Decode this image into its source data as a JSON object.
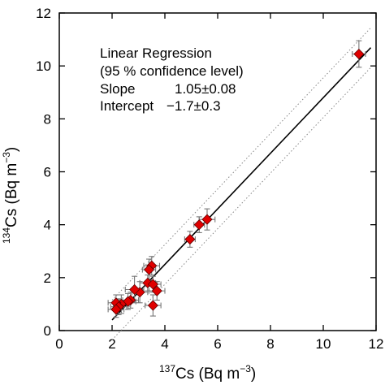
{
  "chart_data": {
    "type": "scatter",
    "title": "",
    "xlabel": {
      "sup": "137",
      "main": "Cs (Bq m",
      "unit_sup": "−3",
      "close": ")"
    },
    "ylabel": {
      "sup": "134",
      "main": "Cs (Bq m",
      "unit_sup": "−3",
      "close": ")"
    },
    "xlim": [
      0,
      12
    ],
    "ylim": [
      0,
      12
    ],
    "xticks": [
      0,
      2,
      4,
      6,
      8,
      10,
      12
    ],
    "yticks": [
      0,
      2,
      4,
      6,
      8,
      10,
      12
    ],
    "grid": false,
    "colors": {
      "marker": "#e00000",
      "marker_edge": "#600000",
      "errorbar": "#777777",
      "fit": "#000000",
      "confidence": "#888888"
    },
    "annotation": {
      "line1": "Linear Regression",
      "line2": "(95 % confidence level)",
      "slope_label": "Slope",
      "slope_value": "1.05±0.08",
      "intercept_label": "Intercept",
      "intercept_value": "−1.7±0.3"
    },
    "fit": {
      "slope": 1.05,
      "intercept": -1.7,
      "x_range": [
        2.0,
        11.8
      ],
      "confidence_offset": 0.75
    },
    "points": [
      {
        "x": 11.35,
        "y": 10.45,
        "xerr": 0.25,
        "yerr": 0.5
      },
      {
        "x": 5.6,
        "y": 4.2,
        "xerr": 0.3,
        "yerr": 0.4
      },
      {
        "x": 5.3,
        "y": 4.0,
        "xerr": 0.2,
        "yerr": 0.3
      },
      {
        "x": 4.95,
        "y": 3.45,
        "xerr": 0.2,
        "yerr": 0.3
      },
      {
        "x": 3.5,
        "y": 2.45,
        "xerr": 0.3,
        "yerr": 0.35
      },
      {
        "x": 3.4,
        "y": 2.3,
        "xerr": 0.25,
        "yerr": 0.4
      },
      {
        "x": 3.35,
        "y": 1.8,
        "xerr": 0.3,
        "yerr": 0.3
      },
      {
        "x": 3.55,
        "y": 1.75,
        "xerr": 0.3,
        "yerr": 0.3
      },
      {
        "x": 3.7,
        "y": 1.5,
        "xerr": 0.3,
        "yerr": 0.35
      },
      {
        "x": 3.05,
        "y": 1.45,
        "xerr": 0.3,
        "yerr": 0.4
      },
      {
        "x": 2.85,
        "y": 1.55,
        "xerr": 0.35,
        "yerr": 0.5
      },
      {
        "x": 3.55,
        "y": 0.95,
        "xerr": 0.3,
        "yerr": 0.4
      },
      {
        "x": 2.7,
        "y": 1.15,
        "xerr": 0.3,
        "yerr": 0.3
      },
      {
        "x": 2.6,
        "y": 1.1,
        "xerr": 0.3,
        "yerr": 0.3
      },
      {
        "x": 2.35,
        "y": 1.0,
        "xerr": 0.3,
        "yerr": 0.35
      },
      {
        "x": 2.15,
        "y": 1.05,
        "xerr": 0.3,
        "yerr": 0.3
      },
      {
        "x": 2.25,
        "y": 0.9,
        "xerr": 0.3,
        "yerr": 0.3
      },
      {
        "x": 2.15,
        "y": 0.8,
        "xerr": 0.3,
        "yerr": 0.3
      }
    ]
  }
}
